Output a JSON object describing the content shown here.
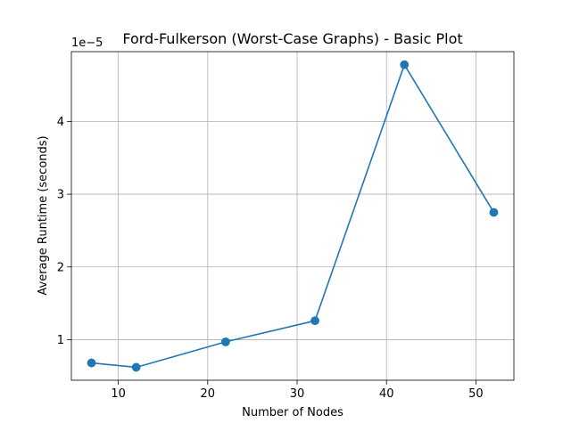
{
  "chart_data": {
    "type": "line",
    "title": "Ford-Fulkerson (Worst-Case Graphs) - Basic Plot",
    "xlabel": "Number of Nodes",
    "ylabel": "Average Runtime (seconds)",
    "y_offset_label": "1e−5",
    "y_scale": 1e-05,
    "x": [
      7,
      12,
      22,
      32,
      42,
      52
    ],
    "series": [
      {
        "values": [
          6.8e-06,
          6.2e-06,
          9.7e-06,
          1.26e-05,
          4.78e-05,
          2.75e-05
        ],
        "color": "#1f77b4",
        "marker": "circle"
      }
    ],
    "xlim": [
      4.75,
      54.25
    ],
    "ylim": [
      4.42e-06,
      4.96e-05
    ],
    "xticks": [
      10,
      20,
      30,
      40,
      50
    ],
    "xtick_labels": [
      "10",
      "20",
      "30",
      "40",
      "50"
    ],
    "yticks": [
      1e-05,
      2e-05,
      3e-05,
      4e-05
    ],
    "ytick_labels": [
      "1",
      "2",
      "3",
      "4"
    ],
    "grid": true,
    "legend": false
  }
}
